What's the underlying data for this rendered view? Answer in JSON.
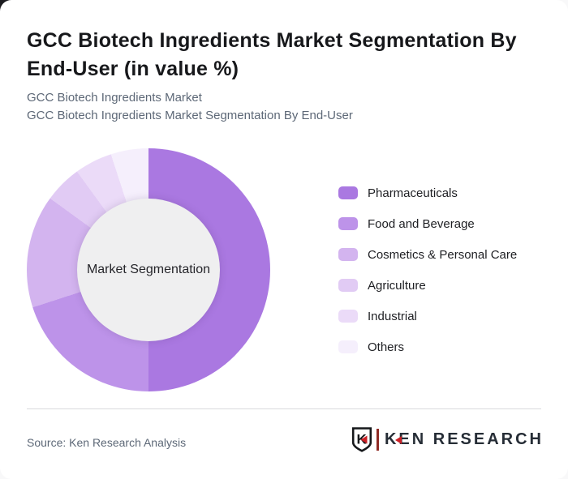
{
  "header": {
    "title": "GCC Biotech Ingredients Market Segmentation By End-User (in value %)",
    "subtitle1": "GCC Biotech Ingredients Market",
    "subtitle2": "GCC Biotech Ingredients Market Segmentation By End-User"
  },
  "chart_data": {
    "type": "pie",
    "donut": true,
    "start_angle_deg": 0,
    "direction": "clockwise",
    "center_label": "Market Segmentation",
    "categories": [
      "Pharmaceuticals",
      "Food and Beverage",
      "Cosmetics & Personal Care",
      "Agriculture",
      "Industrial",
      "Others"
    ],
    "values": [
      50,
      20,
      15,
      5,
      5,
      5
    ],
    "unit": "%",
    "colors": [
      "#aa78e1",
      "#bd93e9",
      "#d3b4ef",
      "#e1cbf4",
      "#ebdbf8",
      "#f5effc"
    ],
    "hole_color": "#efeff0",
    "inner_radius_ratio": 0.587,
    "title": "GCC Biotech Ingredients Market Segmentation By End-User (in value %)",
    "legend_position": "right"
  },
  "footer": {
    "source": "Source: Ken Research Analysis"
  },
  "logo": {
    "brand": "KEN RESEARCH",
    "monogram": "K",
    "red": "#cb2026",
    "dark": "#16181b"
  }
}
